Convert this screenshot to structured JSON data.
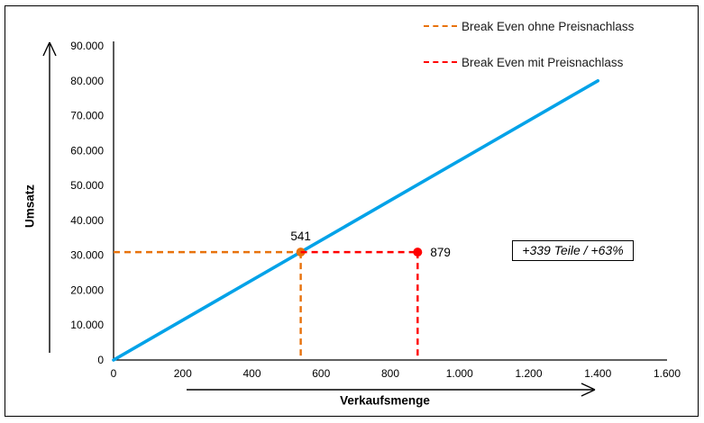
{
  "chart_data": {
    "type": "line",
    "title": "",
    "xlabel": "Verkaufsmenge",
    "ylabel": "Umsatz",
    "xlim": [
      0,
      1600
    ],
    "ylim": [
      0,
      90000
    ],
    "grid": false,
    "legend_position": "top-right",
    "x_tick_values": [
      0,
      200,
      400,
      600,
      800,
      1000,
      1200,
      1400,
      1600
    ],
    "x_tick_labels": [
      "0",
      "200",
      "400",
      "600",
      "800",
      "1.000",
      "1.200",
      "1.400",
      "1.600"
    ],
    "y_tick_values": [
      0,
      10000,
      20000,
      30000,
      40000,
      50000,
      60000,
      70000,
      80000,
      90000
    ],
    "y_tick_labels": [
      "0",
      "10.000",
      "20.000",
      "30.000",
      "40.000",
      "50.000",
      "60.000",
      "70.000",
      "80.000",
      "90.000"
    ],
    "series": [
      {
        "name": "Umsatz",
        "color": "#00A2E8",
        "stroke_width": 3.6,
        "points": [
          [
            0,
            0
          ],
          [
            1400,
            80000
          ]
        ]
      }
    ],
    "legend": [
      {
        "label": "Break Even ohne Preisnachlass",
        "color": "#E8720C",
        "line_style": "dashed"
      },
      {
        "label": "Break Even mit Preisnachlass",
        "color": "#FF0000",
        "line_style": "dashed"
      }
    ],
    "break_even": {
      "y_value": 30914,
      "points": [
        {
          "x": 541,
          "label": "541",
          "color": "#E8720C",
          "label_position": "above"
        },
        {
          "x": 879,
          "label": "879",
          "color": "#FF0000",
          "label_position": "right"
        }
      ]
    },
    "annotation": "+339 Teile / +63%"
  }
}
